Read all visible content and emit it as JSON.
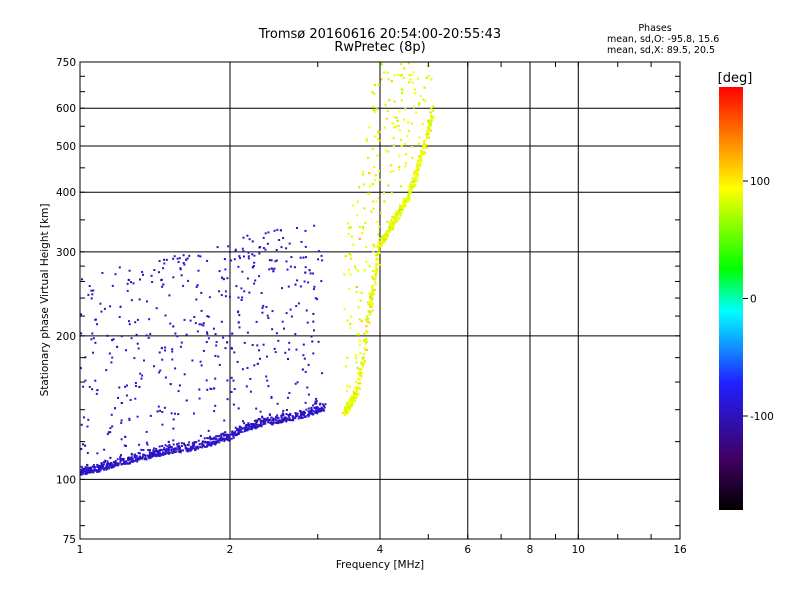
{
  "chart_data": {
    "type": "scatter",
    "title": "Tromsø 20160616 20:54:00-20:55:43",
    "subtitle": "RwPretec (8p)",
    "xlabel": "Frequency [MHz]",
    "ylabel": "Stationary phase Virtual Height [km]",
    "xscale": "log",
    "yscale": "log",
    "xlim": [
      1,
      16
    ],
    "ylim": [
      75,
      750
    ],
    "x_ticks": [
      "1",
      "2",
      "4",
      "6",
      "8",
      "10",
      "16"
    ],
    "x_tick_values": [
      1,
      2,
      4,
      6,
      8,
      10,
      16
    ],
    "y_ticks": [
      "75",
      "100",
      "200",
      "300",
      "400",
      "500",
      "600",
      "750"
    ],
    "y_tick_values": [
      75,
      100,
      200,
      300,
      400,
      500,
      600,
      750
    ],
    "grid": true,
    "phase_stats": {
      "heading": "Phases",
      "line_o": "mean, sd,O: -95.8, 15.6",
      "line_x": "mean, sd,X:  89.5, 20.5"
    },
    "colorbar": {
      "label": "[deg]",
      "ticks": [
        "100",
        "0",
        "-100"
      ],
      "tick_values": [
        100,
        0,
        -100
      ],
      "range": [
        -180,
        180
      ],
      "colors": [
        "#000000",
        "#400060",
        "#2020ff",
        "#00ffff",
        "#00ff00",
        "#ffff00",
        "#ff8000",
        "#ff0000"
      ]
    },
    "series": [
      {
        "name": "O",
        "phase": -95.8,
        "sd": 15.6,
        "trace": [
          [
            1.0,
            102
          ],
          [
            1.1,
            104
          ],
          [
            1.2,
            107
          ],
          [
            1.3,
            109
          ],
          [
            1.4,
            111
          ],
          [
            1.5,
            113
          ],
          [
            1.6,
            114
          ],
          [
            1.7,
            115
          ],
          [
            1.8,
            117
          ],
          [
            1.9,
            119
          ],
          [
            2.0,
            121
          ],
          [
            2.1,
            125
          ],
          [
            2.2,
            127
          ],
          [
            2.3,
            129
          ],
          [
            2.5,
            131
          ],
          [
            2.7,
            133
          ],
          [
            2.9,
            136
          ],
          [
            3.1,
            140
          ]
        ]
      },
      {
        "name": "X",
        "phase": 89.5,
        "sd": 20.5,
        "trace": [
          [
            3.4,
            135
          ],
          [
            3.6,
            150
          ],
          [
            3.7,
            175
          ],
          [
            3.75,
            200
          ],
          [
            4.0,
            305
          ],
          [
            4.3,
            345
          ],
          [
            4.6,
            390
          ],
          [
            4.8,
            450
          ],
          [
            5.0,
            520
          ],
          [
            5.1,
            590
          ]
        ]
      }
    ]
  }
}
